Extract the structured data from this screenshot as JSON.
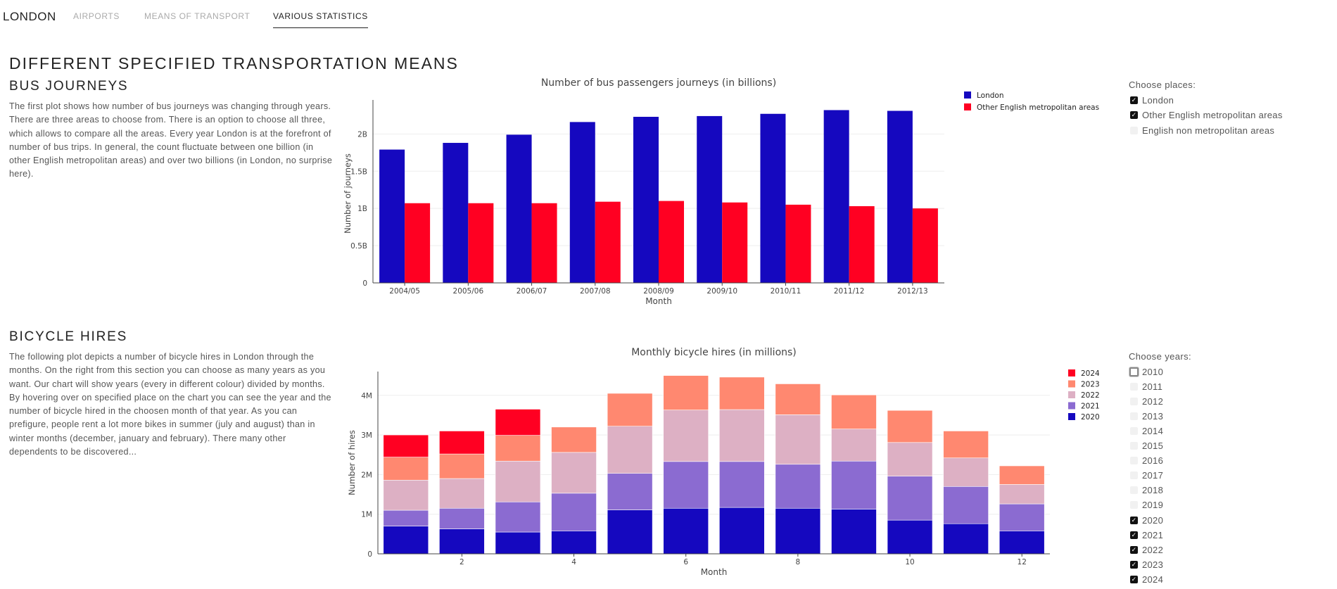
{
  "nav": {
    "brand": "LONDON",
    "links": [
      {
        "label": "AIRPORTS",
        "active": false
      },
      {
        "label": "MEANS OF TRANSPORT",
        "active": false
      },
      {
        "label": "VARIOUS STATISTICS",
        "active": true
      }
    ]
  },
  "page": {
    "title": "DIFFERENT SPECIFIED TRANSPORTATION MEANS"
  },
  "bus": {
    "heading": "BUS JOURNEYS",
    "description": "The first plot shows how number of bus journeys was changing through years. There are three areas to choose from. There is an option to choose all three, which allows to compare all the areas. Every year London is at the forefront of number of bus trips. In general, the count fluctuate between one billion (in other English metropolitan areas) and over two billions (in London, no surprise here).",
    "controls_title": "Choose places:",
    "options": [
      {
        "label": "London",
        "checked": true
      },
      {
        "label": "Other English metropolitan areas",
        "checked": true
      },
      {
        "label": "English non metropolitan areas",
        "checked": false
      }
    ]
  },
  "bikes": {
    "heading": "BICYCLE HIRES",
    "description": "The following plot depicts a number of bicycle hires in London through the months. On the right from this section you can choose as many years as you want. Our chart will show years (every in different colour) divided by months. By hovering over on specified place on the chart you can see the year and the number of bicycle hired in the choosen month of that year. As you can prefigure, people rent a lot more bikes in summer (july and august) than in winter months (december, january and february). There many other dependents to be discovered...",
    "controls_title": "Choose years:",
    "years": [
      {
        "label": "2010",
        "checked": false,
        "focused": true
      },
      {
        "label": "2011",
        "checked": false
      },
      {
        "label": "2012",
        "checked": false
      },
      {
        "label": "2013",
        "checked": false
      },
      {
        "label": "2014",
        "checked": false
      },
      {
        "label": "2015",
        "checked": false
      },
      {
        "label": "2016",
        "checked": false
      },
      {
        "label": "2017",
        "checked": false
      },
      {
        "label": "2018",
        "checked": false
      },
      {
        "label": "2019",
        "checked": false
      },
      {
        "label": "2020",
        "checked": true
      },
      {
        "label": "2021",
        "checked": true
      },
      {
        "label": "2022",
        "checked": true
      },
      {
        "label": "2023",
        "checked": true
      },
      {
        "label": "2024",
        "checked": true
      }
    ]
  },
  "colors": {
    "london": "#1508bf",
    "other": "#ff0022",
    "y2020": "#1508bf",
    "y2021": "#8b6bd1",
    "y2022": "#ddb0c4",
    "y2023": "#ff8870",
    "y2024": "#ff0022",
    "axis": "#444444",
    "grid": "#eeeeee"
  },
  "chart_data": [
    {
      "type": "bar",
      "title": "Number of bus passengers journeys (in billions)",
      "xlabel": "Month",
      "ylabel": "Number of journeys",
      "categories": [
        "2004/05",
        "2005/06",
        "2006/07",
        "2007/08",
        "2008/09",
        "2009/10",
        "2010/11",
        "2011/12",
        "2012/13"
      ],
      "series": [
        {
          "name": "London",
          "values": [
            1.79,
            1.88,
            1.99,
            2.16,
            2.23,
            2.24,
            2.27,
            2.32,
            2.31
          ]
        },
        {
          "name": "Other English metropolitan areas",
          "values": [
            1.07,
            1.07,
            1.07,
            1.09,
            1.1,
            1.08,
            1.05,
            1.03,
            1.0
          ]
        }
      ],
      "ylim": [
        0,
        2.4
      ],
      "yticks": [
        0,
        0.5,
        1,
        1.5,
        2
      ],
      "yticklabels": [
        "0",
        "0.5B",
        "1B",
        "1.5B",
        "2B"
      ],
      "legend": "top-right",
      "grid": true
    },
    {
      "type": "bar",
      "stacked": true,
      "title": "Monthly bicycle hires (in millions)",
      "xlabel": "Month",
      "ylabel": "Number of hires",
      "categories": [
        1,
        2,
        3,
        4,
        5,
        6,
        7,
        8,
        9,
        10,
        11,
        12
      ],
      "xticks": [
        2,
        4,
        6,
        8,
        10,
        12
      ],
      "series": [
        {
          "name": "2020",
          "values": [
            0.7,
            0.63,
            0.55,
            0.58,
            1.11,
            1.15,
            1.17,
            1.15,
            1.13,
            0.85,
            0.76,
            0.58
          ]
        },
        {
          "name": "2021",
          "values": [
            0.4,
            0.52,
            0.76,
            0.95,
            0.92,
            1.18,
            1.16,
            1.11,
            1.21,
            1.11,
            0.94,
            0.68
          ]
        },
        {
          "name": "2022",
          "values": [
            0.76,
            0.75,
            1.03,
            1.03,
            1.19,
            1.3,
            1.31,
            1.25,
            0.81,
            0.85,
            0.72,
            0.49
          ]
        },
        {
          "name": "2023",
          "values": [
            0.58,
            0.62,
            0.65,
            0.64,
            0.83,
            0.87,
            0.82,
            0.78,
            0.86,
            0.81,
            0.68,
            0.47
          ]
        },
        {
          "name": "2024",
          "values": [
            0.56,
            0.58,
            0.66,
            0,
            0,
            0,
            0,
            0,
            0,
            0,
            0,
            0
          ]
        }
      ],
      "legend_order": [
        "2024",
        "2023",
        "2022",
        "2021",
        "2020"
      ],
      "ylim": [
        0,
        4.6
      ],
      "yticks": [
        0,
        1,
        2,
        3,
        4
      ],
      "yticklabels": [
        "0",
        "1M",
        "2M",
        "3M",
        "4M"
      ],
      "legend": "top-right",
      "grid": true
    }
  ]
}
